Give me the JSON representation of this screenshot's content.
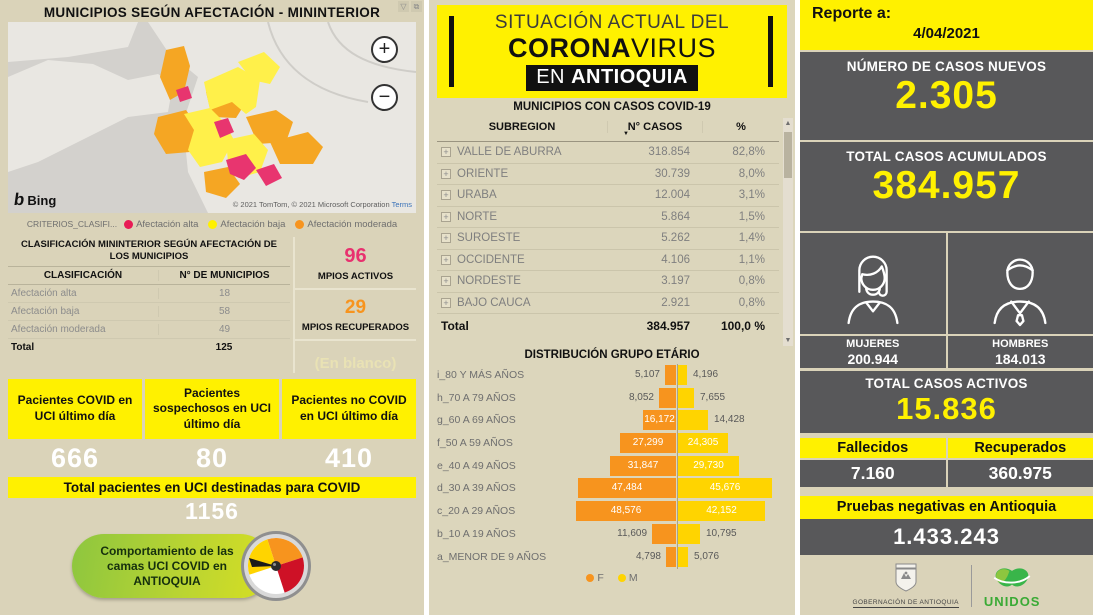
{
  "left_panel": {
    "map": {
      "title": "MUNICIPIOS SEGÚN AFECTACIÓN - MININTERIOR",
      "zoom_in": "+",
      "zoom_out": "−",
      "bing_label": "Bing",
      "copyright": "© 2021 TomTom, © 2021 Microsoft Corporation",
      "terms_link": "Terms",
      "legend_title": "CRITERIOS_CLASIFI...",
      "legend": [
        {
          "label": "Afectación alta",
          "color": "#E81C55"
        },
        {
          "label": "Afectación baja",
          "color": "#FFF100"
        },
        {
          "label": "Afectación moderada",
          "color": "#F7941E"
        }
      ]
    },
    "classification_table": {
      "title": "CLASIFICACIÓN MININTERIOR SEGÚN AFECTACIÓN DE LOS MUNICIPIOS",
      "col_classification": "CLASIFICACIÓN",
      "col_municipios": "N° DE MUNICIPIOS",
      "rows": [
        {
          "name": "Afectación alta",
          "value": "18"
        },
        {
          "name": "Afectación baja",
          "value": "58"
        },
        {
          "name": "Afectación moderada",
          "value": "49"
        }
      ],
      "total_label": "Total",
      "total_value": "125"
    },
    "mpios_summary": {
      "activos_value": "96",
      "activos_label": "MPIOS ACTIVOS",
      "recuperados_value": "29",
      "recuperados_label": "MPIOS RECUPERADOS",
      "blank_text": "(En blanco)"
    },
    "uci_cards": [
      {
        "label": "Pacientes COVID en UCI último día",
        "value": "666"
      },
      {
        "label": "Pacientes sospechosos en UCI último día",
        "value": "80"
      },
      {
        "label": "Pacientes no COVID en UCI último día",
        "value": "410"
      }
    ],
    "uci_total": {
      "label": "Total pacientes en UCI destinadas para COVID",
      "value": "1156"
    },
    "uci_button_label": "Comportamiento de las camas UCI COVID en ANTIOQUIA"
  },
  "center_panel": {
    "banner": {
      "line1": "SITUACIÓN ACTUAL DEL",
      "line2_bold": "CORONA",
      "line2_light": "VIRUS",
      "line3_light": "EN ",
      "line3_bold": "ANTIOQUIA"
    },
    "cases_table": {
      "title": "MUNICIPIOS CON CASOS COVID-19",
      "col_subregion": "SUBREGION",
      "col_cases": "N° CASOS",
      "col_pct": "%",
      "sort_icon": "▼",
      "expand_icon": "+",
      "rows": [
        {
          "subregion": "VALLE DE ABURRÁ",
          "cases": "318.854",
          "pct": "82,8%"
        },
        {
          "subregion": "ORIENTE",
          "cases": "30.739",
          "pct": "8,0%"
        },
        {
          "subregion": "URABÁ",
          "cases": "12.004",
          "pct": "3,1%"
        },
        {
          "subregion": "NORTE",
          "cases": "5.864",
          "pct": "1,5%"
        },
        {
          "subregion": "SUROESTE",
          "cases": "5.262",
          "pct": "1,4%"
        },
        {
          "subregion": "OCCIDENTE",
          "cases": "4.106",
          "pct": "1,1%"
        },
        {
          "subregion": "NORDESTE",
          "cases": "3.197",
          "pct": "0,8%"
        },
        {
          "subregion": "BAJO CAUCA",
          "cases": "2.921",
          "pct": "0,8%"
        }
      ],
      "total_label": "Total",
      "total_cases": "384.957",
      "total_pct": "100,0 %"
    }
  },
  "chart_data": {
    "type": "bar",
    "variant": "population-pyramid",
    "title": "DISTRIBUCIÓN GRUPO ETÁRIO",
    "categories": [
      "i_80 Y MÁS AÑOS",
      "h_70 A 79 AÑOS",
      "g_60 A 69 AÑOS",
      "f_50 A 59 AÑOS",
      "e_40 A 49 AÑOS",
      "d_30 A 39 AÑOS",
      "c_20 A 29 AÑOS",
      "b_10 A 19 AÑOS",
      "a_MENOR DE 9 AÑOS"
    ],
    "series": [
      {
        "name": "F",
        "color": "#F7941E",
        "values": [
          5107,
          8052,
          16172,
          27299,
          31847,
          47484,
          48576,
          11609,
          4798
        ],
        "labels": [
          "5,107",
          "8,052",
          "16,172",
          "27,299",
          "31,847",
          "47,484",
          "48,576",
          "11,609",
          "4,798"
        ]
      },
      {
        "name": "M",
        "color": "#FFD400",
        "values": [
          4196,
          7655,
          14428,
          24305,
          29730,
          45676,
          42152,
          10795,
          5076
        ],
        "labels": [
          "4,196",
          "7,655",
          "14,428",
          "24,305",
          "29,730",
          "45,676",
          "42,152",
          "10,795",
          "5,076"
        ]
      }
    ],
    "legend_position": "bottom",
    "axis_max": 48576
  },
  "right_panel": {
    "report": {
      "label": "Reporte a:",
      "date": "4/04/2021"
    },
    "new_cases": {
      "label": "NÚMERO DE CASOS NUEVOS",
      "value": "2.305"
    },
    "total_cases": {
      "label": "TOTAL CASOS ACUMULADOS",
      "value": "384.957"
    },
    "gender": {
      "women_label": "MUJERES",
      "women_value": "200.944",
      "men_label": "HOMBRES",
      "men_value": "184.013"
    },
    "active_cases": {
      "label": "TOTAL CASOS ACTIVOS",
      "value": "15.836"
    },
    "deaths": {
      "label": "Fallecidos",
      "value": "7.160"
    },
    "recovered": {
      "label": "Recuperados",
      "value": "360.975"
    },
    "negative_tests": {
      "label": "Pruebas negativas en Antioquia",
      "value": "1.433.243"
    },
    "footer": {
      "gobernacion": "GOBERNACIÓN DE ANTIOQUIA",
      "unidos": "UNIDOS"
    }
  },
  "colors": {
    "yellow": "#FFF100",
    "dark_gray": "#58585A",
    "pink": "#E8316F",
    "orange": "#F7941E",
    "bar_yellow": "#FFD400"
  }
}
